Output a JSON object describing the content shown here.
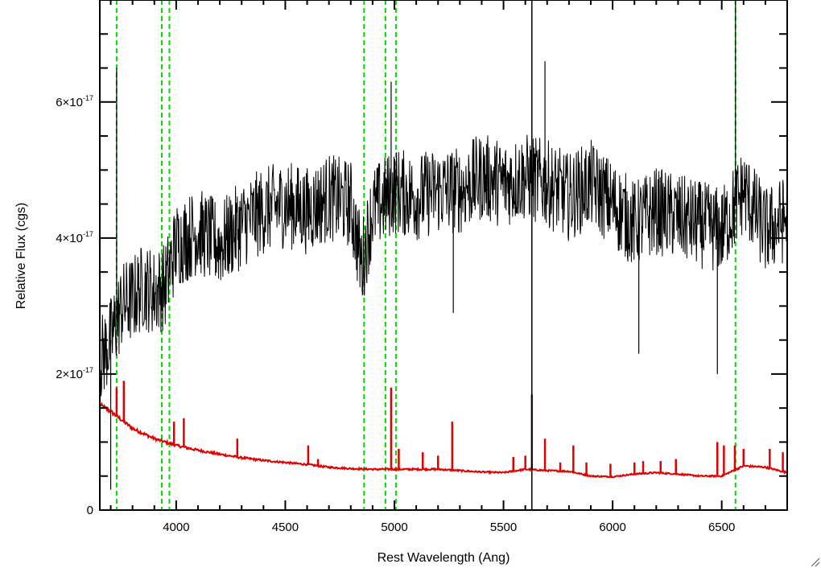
{
  "chart_data": {
    "type": "line",
    "title": "",
    "xlabel": "Rest Wavelength (Ang)",
    "ylabel": "Relative Flux (cgs)",
    "xlim": [
      3650,
      6800
    ],
    "ylim": [
      0,
      7.5e-17
    ],
    "x_ticks": [
      {
        "value": 4000,
        "label": "4000"
      },
      {
        "value": 4500,
        "label": "4500"
      },
      {
        "value": 5000,
        "label": "5000"
      },
      {
        "value": 5500,
        "label": "5500"
      },
      {
        "value": 6000,
        "label": "6000"
      },
      {
        "value": 6500,
        "label": "6500"
      }
    ],
    "y_ticks": [
      {
        "value": 0,
        "mantissa": "0",
        "exponent": ""
      },
      {
        "value": 2e-17,
        "mantissa": "2×10",
        "exponent": "-17"
      },
      {
        "value": 4e-17,
        "mantissa": "4×10",
        "exponent": "-17"
      },
      {
        "value": 6e-17,
        "mantissa": "6×10",
        "exponent": "-17"
      }
    ],
    "grid": false,
    "colors": {
      "observed": "#000000",
      "model": "#e00000",
      "lines": "#00dd00"
    },
    "vertical_lines": [
      3727,
      3934,
      3969,
      4861,
      4959,
      5007,
      6563
    ],
    "marker_line": 5630,
    "series": [
      {
        "name": "",
        "color": "#000000",
        "x": [
          3650,
          3700,
          3750,
          3800,
          3850,
          3900,
          3950,
          4000,
          4100,
          4200,
          4300,
          4400,
          4500,
          4600,
          4700,
          4800,
          4850,
          4900,
          5000,
          5100,
          5200,
          5300,
          5400,
          5500,
          5600,
          5700,
          5800,
          5900,
          6000,
          6100,
          6200,
          6300,
          6400,
          6500,
          6600,
          6700,
          6800
        ],
        "y": [
          2.2e-17,
          2.5e-17,
          3e-17,
          3.1e-17,
          3.3e-17,
          3.2e-17,
          3.3e-17,
          3.9e-17,
          4.1e-17,
          3.9e-17,
          4.2e-17,
          4.4e-17,
          4.5e-17,
          4.4e-17,
          4.6e-17,
          4.5e-17,
          3.6e-17,
          4.4e-17,
          4.7e-17,
          4.6e-17,
          4.7e-17,
          4.7e-17,
          4.9e-17,
          4.8e-17,
          4.9e-17,
          4.8e-17,
          4.6e-17,
          4.8e-17,
          4.5e-17,
          4.2e-17,
          4.4e-17,
          4.3e-17,
          4.2e-17,
          4.1e-17,
          4.7e-17,
          4.1e-17,
          4.3e-17
        ],
        "spikes": [
          {
            "x": 3727,
            "y": 6.5e-17
          },
          {
            "x": 3700,
            "y": 3e-18
          },
          {
            "x": 4985,
            "y": 6.3e-17
          },
          {
            "x": 5630,
            "y": 0.0
          },
          {
            "x": 5690,
            "y": 6.6e-17
          },
          {
            "x": 6120,
            "y": 2.3e-17
          },
          {
            "x": 6480,
            "y": 2e-17
          },
          {
            "x": 6563,
            "y": 7.5e-17
          },
          {
            "x": 5270,
            "y": 2.9e-17
          }
        ]
      },
      {
        "name": "",
        "color": "#e00000",
        "x": [
          3650,
          3700,
          3800,
          3900,
          4000,
          4100,
          4200,
          4300,
          4400,
          4500,
          4600,
          4700,
          4800,
          4900,
          5000,
          5100,
          5200,
          5300,
          5400,
          5500,
          5600,
          5700,
          5800,
          5900,
          6000,
          6100,
          6200,
          6300,
          6400,
          6500,
          6600,
          6700,
          6800
        ],
        "y": [
          1.55e-17,
          1.45e-17,
          1.2e-17,
          1.05e-17,
          9.5e-18,
          8.8e-18,
          8.2e-18,
          7.7e-18,
          7.3e-18,
          7e-18,
          6.7e-18,
          6.3e-18,
          6.1e-18,
          6e-18,
          6e-18,
          6e-18,
          6e-18,
          5.8e-18,
          5.6e-18,
          5.5e-18,
          6e-18,
          5.8e-18,
          5.7e-18,
          5e-18,
          4.9e-18,
          5.3e-18,
          5.5e-18,
          5.3e-18,
          5e-18,
          5e-18,
          6.5e-18,
          6.3e-18,
          5.5e-18
        ],
        "emission": [
          {
            "x": 3727,
            "y": 1.8e-17
          },
          {
            "x": 3760,
            "y": 1.9e-17
          },
          {
            "x": 3990,
            "y": 1.3e-17
          },
          {
            "x": 4035,
            "y": 1.35e-17
          },
          {
            "x": 4280,
            "y": 1.05e-17
          },
          {
            "x": 4605,
            "y": 9.5e-18
          },
          {
            "x": 4650,
            "y": 7.5e-18
          },
          {
            "x": 4985,
            "y": 1.8e-17
          },
          {
            "x": 5020,
            "y": 9e-18
          },
          {
            "x": 5130,
            "y": 8.5e-18
          },
          {
            "x": 5200,
            "y": 8e-18
          },
          {
            "x": 5265,
            "y": 1.3e-17
          },
          {
            "x": 5545,
            "y": 7.8e-18
          },
          {
            "x": 5600,
            "y": 8e-18
          },
          {
            "x": 5630,
            "y": 1.7e-17
          },
          {
            "x": 5690,
            "y": 1.05e-17
          },
          {
            "x": 5760,
            "y": 7e-18
          },
          {
            "x": 5820,
            "y": 9.5e-18
          },
          {
            "x": 5880,
            "y": 7e-18
          },
          {
            "x": 5990,
            "y": 6.8e-18
          },
          {
            "x": 6100,
            "y": 7e-18
          },
          {
            "x": 6140,
            "y": 7.2e-18
          },
          {
            "x": 6220,
            "y": 7.2e-18
          },
          {
            "x": 6290,
            "y": 7.5e-18
          },
          {
            "x": 6480,
            "y": 1e-17
          },
          {
            "x": 6510,
            "y": 9.5e-18
          },
          {
            "x": 6560,
            "y": 9.5e-18
          },
          {
            "x": 6600,
            "y": 9e-18
          },
          {
            "x": 6720,
            "y": 9e-18
          },
          {
            "x": 6780,
            "y": 8.5e-18
          }
        ]
      }
    ]
  }
}
